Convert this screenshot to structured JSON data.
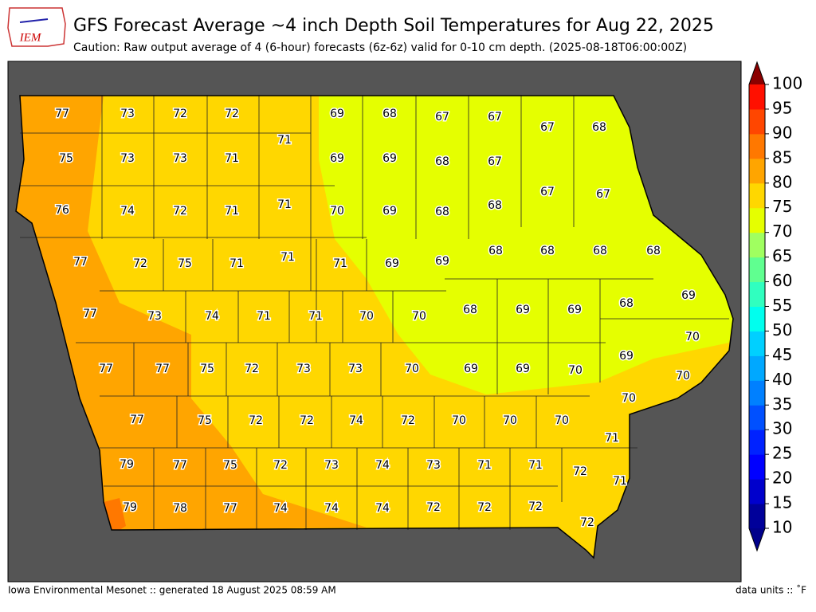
{
  "logo": "IEM",
  "title": "GFS Forecast Average ~4 inch Depth Soil Temperatures for Aug 22, 2025",
  "subtitle": "Caution: Raw output average of 4 (6-hour) forecasts (6z-6z) valid for 0-10 cm depth. (2025-08-18T06:00:00Z)",
  "footer_left": "Iowa Environmental Mesonet :: generated 18 August 2025 08:59 AM",
  "footer_right": "data units :: ˚F",
  "colorbar": {
    "ticks": [
      10,
      15,
      20,
      25,
      30,
      35,
      40,
      45,
      50,
      55,
      60,
      65,
      70,
      75,
      80,
      85,
      90,
      95,
      100
    ],
    "colors": [
      "#00009a",
      "#0000cc",
      "#0000ff",
      "#0022ff",
      "#0050ff",
      "#0080ff",
      "#00a8ff",
      "#00d0ff",
      "#00ffee",
      "#30ffbf",
      "#60ff90",
      "#a0ff60",
      "#e5ff00",
      "#ffd700",
      "#ffa500",
      "#ff7800",
      "#ff4600",
      "#ff1000"
    ],
    "under_color": "#00008b",
    "over_color": "#8b0000"
  },
  "county_values": [
    77,
    73,
    72,
    72,
    69,
    68,
    67,
    67,
    67,
    68,
    71,
    75,
    73,
    73,
    71,
    69,
    69,
    68,
    67,
    67,
    67,
    76,
    74,
    72,
    71,
    71,
    70,
    69,
    68,
    68,
    77,
    72,
    75,
    71,
    71,
    71,
    69,
    69,
    68,
    68,
    68,
    68,
    69,
    68,
    77,
    73,
    74,
    71,
    71,
    70,
    70,
    68,
    69,
    69,
    70,
    69,
    77,
    77,
    75,
    72,
    73,
    73,
    70,
    69,
    69,
    70,
    70,
    70,
    77,
    75,
    72,
    72,
    74,
    72,
    70,
    70,
    70,
    71,
    79,
    77,
    75,
    72,
    73,
    74,
    73,
    71,
    71,
    72,
    71,
    79,
    78,
    77,
    74,
    74,
    74,
    72,
    72,
    72,
    72
  ]
}
